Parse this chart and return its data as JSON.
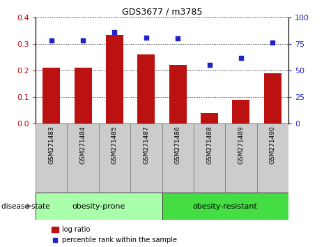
{
  "title": "GDS3677 / m3785",
  "categories": [
    "GSM271483",
    "GSM271484",
    "GSM271485",
    "GSM271487",
    "GSM271486",
    "GSM271488",
    "GSM271489",
    "GSM271490"
  ],
  "log_ratio": [
    0.21,
    0.21,
    0.335,
    0.26,
    0.22,
    0.04,
    0.09,
    0.19
  ],
  "percentile_rank_pct": [
    78,
    78,
    86,
    81,
    80,
    55,
    62,
    76
  ],
  "bar_color": "#BB1111",
  "dot_color": "#2222CC",
  "ylim_left": [
    0,
    0.4
  ],
  "ylim_right": [
    0,
    100
  ],
  "yticks_left": [
    0,
    0.1,
    0.2,
    0.3,
    0.4
  ],
  "yticks_right": [
    0,
    25,
    50,
    75,
    100
  ],
  "groups": [
    {
      "label": "obesity-prone",
      "start": 0,
      "end": 3,
      "color": "#AAFFAA"
    },
    {
      "label": "obesity-resistant",
      "start": 4,
      "end": 7,
      "color": "#44DD44"
    }
  ],
  "disease_state_label": "disease state",
  "legend_bar_label": "log ratio",
  "legend_dot_label": "percentile rank within the sample",
  "bar_width": 0.55,
  "background_color": "#FFFFFF",
  "tick_label_bg": "#CCCCCC",
  "bar_edge_color": "#CCCCCC"
}
